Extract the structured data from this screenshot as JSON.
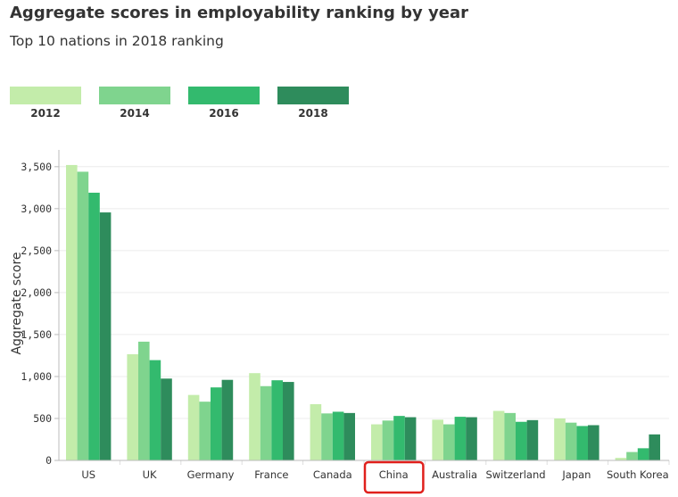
{
  "chart_data": {
    "type": "bar",
    "title": "Aggregate scores in employability ranking by year",
    "subtitle": "Top 10 nations in 2018 ranking",
    "xlabel": "",
    "ylabel": "Aggregate score",
    "ylim": [
      0,
      3700
    ],
    "yticks": [
      0,
      500,
      1000,
      1500,
      2000,
      2500,
      3000,
      3500
    ],
    "ytick_labels": [
      "0",
      "500",
      "1,000",
      "1,500",
      "2,000",
      "2,500",
      "3,000",
      "3,500"
    ],
    "categories": [
      "US",
      "UK",
      "Germany",
      "France",
      "Canada",
      "China",
      "Australia",
      "Switzerland",
      "Japan",
      "South Korea"
    ],
    "highlighted_category": "China",
    "series": [
      {
        "name": "2012",
        "color": "#c3ecaa",
        "values": [
          3520,
          1265,
          780,
          1040,
          670,
          430,
          485,
          590,
          500,
          30
        ]
      },
      {
        "name": "2014",
        "color": "#7fd48e",
        "values": [
          3440,
          1415,
          700,
          885,
          560,
          475,
          430,
          565,
          450,
          100
        ]
      },
      {
        "name": "2016",
        "color": "#33ba6e",
        "values": [
          3190,
          1195,
          870,
          955,
          580,
          530,
          520,
          460,
          410,
          145
        ]
      },
      {
        "name": "2018",
        "color": "#2e8c5c",
        "values": [
          2955,
          975,
          960,
          935,
          565,
          515,
          515,
          480,
          420,
          310
        ]
      }
    ],
    "highlight_color": "#e0201c",
    "grid": true,
    "legend_position": "top-left"
  }
}
